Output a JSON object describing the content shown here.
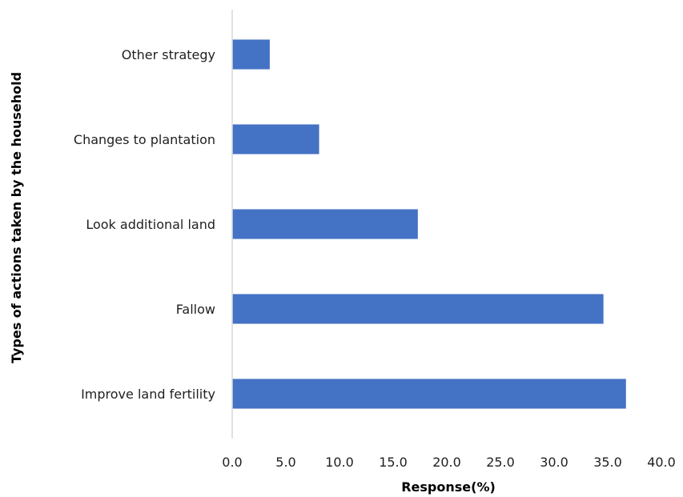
{
  "chart_data": {
    "type": "bar",
    "orientation": "horizontal",
    "categories": [
      "Other strategy",
      "Changes to plantation",
      "Look additional land",
      "Fallow",
      "Improve land fertility"
    ],
    "values": [
      3.5,
      8.1,
      17.3,
      34.6,
      36.7
    ],
    "xlabel": "Response(%)",
    "ylabel": "Types of actions taken by the household",
    "xlim": [
      0,
      40
    ],
    "xticks": [
      "0.0",
      "5.0",
      "10.0",
      "15.0",
      "20.0",
      "25.0",
      "30.0",
      "35.0",
      "40.0"
    ],
    "grid": false,
    "legend": "none",
    "bar_color": "#4472C4",
    "axis_color": "#d9d9d9"
  }
}
